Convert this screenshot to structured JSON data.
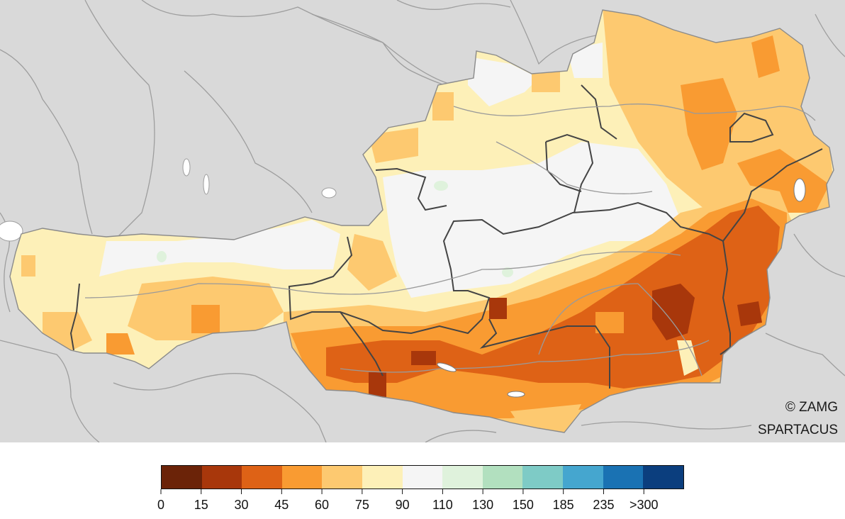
{
  "map": {
    "credit_line1": "© ZAMG",
    "credit_line2": "SPARTACUS"
  },
  "legend": {
    "colors": [
      "#6b2308",
      "#a8370b",
      "#de6216",
      "#f99b32",
      "#fdc970",
      "#fdf0b8",
      "#f5f5f5",
      "#dff2dc",
      "#b2e0bf",
      "#7ecbc6",
      "#45a6cf",
      "#1a72b3",
      "#0b3e7e"
    ],
    "ticks": [
      "0",
      "15",
      "30",
      "45",
      "60",
      "75",
      "90",
      "110",
      "130",
      "150",
      "185",
      "235",
      ">300"
    ]
  }
}
